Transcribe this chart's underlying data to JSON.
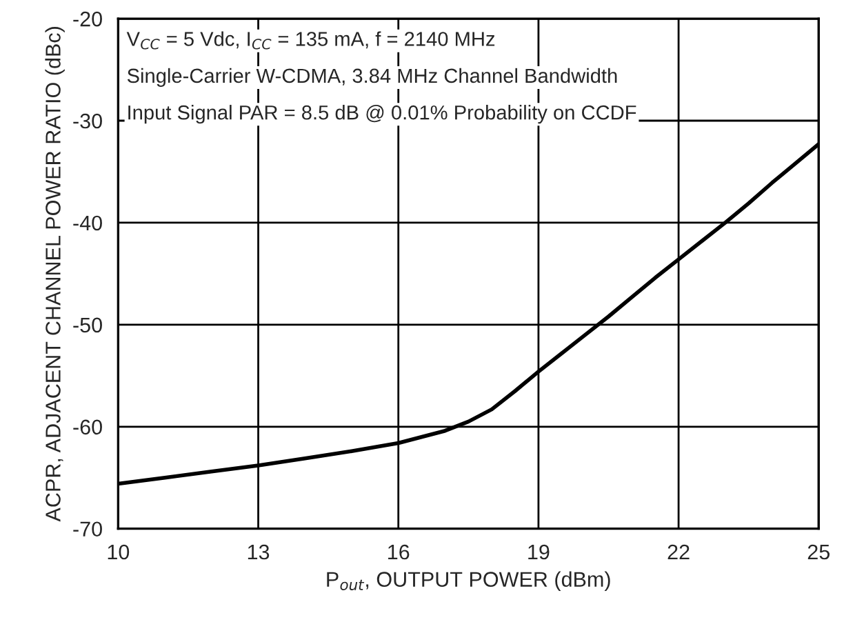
{
  "chart_data": {
    "type": "line",
    "xlabel": "P$_{out}$, OUTPUT POWER (dBm)",
    "ylabel": "ACPR, ADJACENT CHANNEL POWER RATIO (dBc)",
    "x": [
      10,
      11,
      12,
      13,
      14,
      15,
      16,
      17,
      17.5,
      18,
      18.5,
      19,
      19.5,
      20,
      20.5,
      21,
      21.5,
      22,
      22.5,
      23,
      23.5,
      24,
      24.5,
      25
    ],
    "series": [
      {
        "color": "#000000",
        "values": [
          -65.6,
          -65,
          -64.4,
          -63.8,
          -63.1,
          -62.4,
          -61.6,
          -60.4,
          -59.5,
          -58.3,
          -56.5,
          -54.6,
          -52.8,
          -51,
          -49.2,
          -47.3,
          -45.4,
          -43.6,
          -41.8,
          -40,
          -38.1,
          -36.1,
          -34.2,
          -32.3
        ]
      }
    ],
    "xlim": [
      10,
      25
    ],
    "xticks": [
      10,
      13,
      16,
      19,
      22,
      25
    ],
    "ylim": [
      -70,
      -20
    ],
    "yticks": [
      -70,
      -60,
      -50,
      -40,
      -30,
      -20
    ],
    "grid": true,
    "line_style": "solid",
    "annotations": [
      "V$_{CC}$ = 5 Vdc, I$_{CC}$ = 135 mA, f = 2140 MHz",
      "Single-Carrier W-CDMA, 3.84 MHz Channel Bandwidth",
      "Input Signal PAR = 8.5 dB @ 0.01% Probability on CCDF"
    ]
  }
}
